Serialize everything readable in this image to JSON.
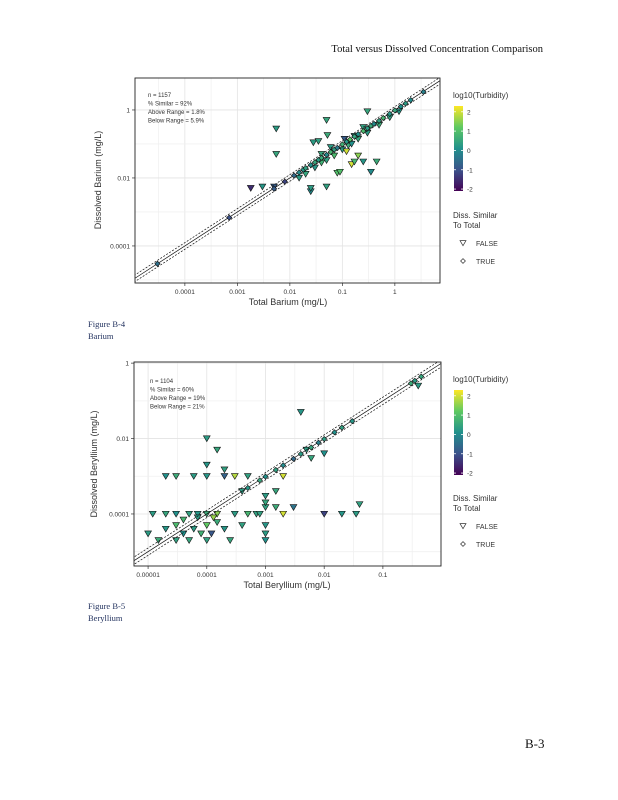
{
  "header": {
    "title": "Total versus Dissolved Concentration Comparison"
  },
  "page_number": "B-3",
  "figures": [
    {
      "caption_number": "Figure B-4",
      "caption_name": "Barium"
    },
    {
      "caption_number": "Figure B-5",
      "caption_name": "Beryllium"
    }
  ],
  "colorscale": [
    "#440154",
    "#3b528b",
    "#21918c",
    "#5ec962",
    "#fde725"
  ],
  "chart_data": [
    {
      "type": "scatter",
      "xlabel": "Total Barium (mg/L)",
      "ylabel": "Dissolved Barium (mg/L)",
      "x_scale": "log10",
      "y_scale": "log10",
      "x_ticks": [
        {
          "v": 0.0001,
          "label": "0.0001"
        },
        {
          "v": 0.001,
          "label": "0.001"
        },
        {
          "v": 0.01,
          "label": "0.01"
        },
        {
          "v": 0.1,
          "label": "0.1"
        },
        {
          "v": 1,
          "label": "1"
        }
      ],
      "y_ticks": [
        {
          "v": 1,
          "label": "1"
        },
        {
          "v": 0.01,
          "label": "0.01"
        },
        {
          "v": 0.0001,
          "label": "0.0001"
        }
      ],
      "stats": [
        "n = 1157",
        "% Similar = 92%",
        "Above Range = 1.8%",
        "Below Range = 5.9%"
      ],
      "legend": {
        "color_title": "log10(Turbidity)",
        "color_ticks": [
          "2",
          "1",
          "0",
          "-1",
          "-2"
        ],
        "shape_title_1": "Diss. Similar",
        "shape_title_2": "To Total",
        "false_label": "FALSE",
        "true_label": "TRUE"
      },
      "color_range": [
        -2.1,
        2.3
      ],
      "points_format": [
        "total",
        "dissolved",
        "log10_turbidity",
        "similar"
      ],
      "points": [
        [
          3e-05,
          3e-05,
          -0.5,
          1
        ],
        [
          0.0007,
          0.00068,
          -1,
          1
        ],
        [
          0.005,
          0.0048,
          -0.8,
          1
        ],
        [
          0.008,
          0.0078,
          -1.2,
          1
        ],
        [
          0.012,
          0.0118,
          -0.6,
          1
        ],
        [
          0.015,
          0.0145,
          0,
          1
        ],
        [
          0.018,
          0.0175,
          0.2,
          1
        ],
        [
          0.02,
          0.0195,
          0.4,
          1
        ],
        [
          0.025,
          0.024,
          0.1,
          1
        ],
        [
          0.03,
          0.029,
          0.5,
          1
        ],
        [
          0.035,
          0.034,
          0.3,
          1
        ],
        [
          0.04,
          0.039,
          0.6,
          1
        ],
        [
          0.05,
          0.048,
          0,
          1
        ],
        [
          0.06,
          0.058,
          0.8,
          1
        ],
        [
          0.07,
          0.068,
          0.4,
          1
        ],
        [
          0.08,
          0.077,
          -0.3,
          1
        ],
        [
          0.1,
          0.097,
          0.7,
          1
        ],
        [
          0.12,
          0.116,
          0.2,
          1
        ],
        [
          0.14,
          0.135,
          1.2,
          1
        ],
        [
          0.17,
          0.165,
          0.5,
          1
        ],
        [
          0.2,
          0.194,
          0.1,
          1
        ],
        [
          0.25,
          0.24,
          0.9,
          1
        ],
        [
          0.3,
          0.29,
          0.3,
          1
        ],
        [
          0.35,
          0.34,
          0.6,
          1
        ],
        [
          0.4,
          0.39,
          0.0,
          1
        ],
        [
          0.5,
          0.48,
          0.4,
          1
        ],
        [
          0.6,
          0.58,
          0.8,
          1
        ],
        [
          0.8,
          0.77,
          0.2,
          1
        ],
        [
          1.0,
          0.97,
          0.5,
          1
        ],
        [
          1.3,
          1.26,
          0.1,
          1
        ],
        [
          1.6,
          1.55,
          0.3,
          1
        ],
        [
          2.0,
          1.95,
          0.0,
          1
        ],
        [
          3.5,
          3.4,
          -0.2,
          1
        ],
        [
          0.015,
          0.01,
          0.3,
          0
        ],
        [
          0.02,
          0.013,
          0.5,
          0
        ],
        [
          0.03,
          0.02,
          0.2,
          0
        ],
        [
          0.04,
          0.028,
          0.7,
          0
        ],
        [
          0.05,
          0.033,
          0.4,
          0
        ],
        [
          0.07,
          0.045,
          0.9,
          0
        ],
        [
          0.1,
          0.068,
          0.3,
          0
        ],
        [
          0.13,
          0.09,
          0.6,
          0
        ],
        [
          0.15,
          0.1,
          0.1,
          0
        ],
        [
          0.2,
          0.14,
          0.5,
          0
        ],
        [
          0.3,
          0.21,
          0.3,
          0
        ],
        [
          0.5,
          0.36,
          0.6,
          0
        ],
        [
          0.8,
          0.6,
          0.4,
          0
        ],
        [
          1.2,
          0.9,
          0.2,
          0
        ],
        [
          0.04,
          0.05,
          0.5,
          0
        ],
        [
          0.06,
          0.08,
          0.3,
          0
        ],
        [
          0.25,
          0.31,
          0.4,
          0
        ],
        [
          0.11,
          0.14,
          -0.8,
          0
        ],
        [
          0.0055,
          0.28,
          0.3,
          0
        ],
        [
          0.0055,
          0.05,
          0.5,
          0
        ],
        [
          0.028,
          0.11,
          0.3,
          0
        ],
        [
          0.035,
          0.12,
          0.4,
          0
        ],
        [
          0.05,
          0.5,
          0.5,
          0
        ],
        [
          0.052,
          0.18,
          0.6,
          0
        ],
        [
          0.3,
          0.9,
          0.5,
          0
        ],
        [
          0.17,
          0.17,
          0.3,
          0
        ],
        [
          0.025,
          0.004,
          0.0,
          0
        ],
        [
          0.025,
          0.005,
          0.3,
          0
        ],
        [
          0.05,
          0.0055,
          0.4,
          0
        ],
        [
          0.0018,
          0.005,
          -1.5,
          0
        ],
        [
          0.003,
          0.0055,
          0.2,
          0
        ],
        [
          0.005,
          0.0055,
          -0.8,
          0
        ],
        [
          0.25,
          0.03,
          0.2,
          0
        ],
        [
          0.45,
          0.03,
          0.6,
          0
        ],
        [
          0.35,
          0.015,
          0.0,
          0
        ],
        [
          0.08,
          0.014,
          1.0,
          0
        ],
        [
          0.09,
          0.015,
          1.0,
          0
        ],
        [
          0.15,
          0.025,
          2.0,
          0
        ],
        [
          0.12,
          0.06,
          2.0,
          0
        ],
        [
          0.2,
          0.045,
          1.5,
          0
        ],
        [
          0.17,
          0.03,
          0.8,
          0
        ]
      ]
    },
    {
      "type": "scatter",
      "xlabel": "Total Beryllium (mg/L)",
      "ylabel": "Dissolved Beryllium (mg/L)",
      "x_scale": "log10",
      "y_scale": "log10",
      "x_ticks": [
        {
          "v": 1e-05,
          "label": "0.00001"
        },
        {
          "v": 0.0001,
          "label": "0.0001"
        },
        {
          "v": 0.001,
          "label": "0.001"
        },
        {
          "v": 0.01,
          "label": "0.01"
        },
        {
          "v": 0.1,
          "label": "0.1"
        }
      ],
      "y_ticks": [
        {
          "v": 1,
          "label": "1"
        },
        {
          "v": 0.01,
          "label": "0.01"
        },
        {
          "v": 0.0001,
          "label": "0.0001"
        }
      ],
      "stats": [
        "n = 1104",
        "% Similar = 60%",
        "Above Range = 19%",
        "Below Range = 21%"
      ],
      "legend": {
        "color_title": "log10(Turbidity)",
        "color_ticks": [
          "2",
          "1",
          "0",
          "-1",
          "-2"
        ],
        "shape_title_1": "Diss. Similar",
        "shape_title_2": "To Total",
        "false_label": "FALSE",
        "true_label": "TRUE"
      },
      "color_range": [
        -2.1,
        2.3
      ],
      "points_format": [
        "total",
        "dissolved",
        "log10_turbidity",
        "similar"
      ],
      "points": [
        [
          0.0005,
          0.00049,
          0.2,
          1
        ],
        [
          0.0008,
          0.00078,
          0.5,
          1
        ],
        [
          0.001,
          0.00098,
          0.1,
          1
        ],
        [
          0.0015,
          0.00147,
          0.4,
          1
        ],
        [
          0.002,
          0.00195,
          0.0,
          1
        ],
        [
          0.003,
          0.0029,
          -0.6,
          1
        ],
        [
          0.004,
          0.0039,
          0.3,
          1
        ],
        [
          0.006,
          0.0058,
          0.5,
          1
        ],
        [
          0.008,
          0.0078,
          -0.2,
          1
        ],
        [
          0.01,
          0.0097,
          0.3,
          1
        ],
        [
          0.015,
          0.0146,
          0.1,
          1
        ],
        [
          0.02,
          0.0195,
          0.4,
          1
        ],
        [
          0.03,
          0.029,
          0.2,
          1
        ],
        [
          0.3,
          0.29,
          0.6,
          1
        ],
        [
          0.35,
          0.34,
          0.3,
          1
        ],
        [
          0.45,
          0.44,
          0.5,
          1
        ],
        [
          1.2e-05,
          0.0001,
          0.3,
          0
        ],
        [
          2e-05,
          0.0001,
          0.5,
          0
        ],
        [
          3e-05,
          0.0001,
          0.1,
          0
        ],
        [
          5e-05,
          0.0001,
          0.4,
          0
        ],
        [
          7e-05,
          0.0001,
          0.2,
          0
        ],
        [
          0.0001,
          0.0001,
          0.6,
          0
        ],
        [
          0.00015,
          0.0001,
          1.5,
          0
        ],
        [
          0.0003,
          0.0001,
          0.3,
          0
        ],
        [
          0.0005,
          0.0001,
          0.8,
          0
        ],
        [
          0.0007,
          0.0001,
          0.4,
          0
        ],
        [
          1e-05,
          3e-05,
          0.3,
          0
        ],
        [
          1.5e-05,
          2e-05,
          0.6,
          0
        ],
        [
          2e-05,
          4e-05,
          0.2,
          0
        ],
        [
          3e-05,
          2e-05,
          0.4,
          0
        ],
        [
          3e-05,
          5e-05,
          0.9,
          0
        ],
        [
          4e-05,
          3e-05,
          0.1,
          0
        ],
        [
          5e-05,
          2e-05,
          0.5,
          0
        ],
        [
          6e-05,
          4e-05,
          0.3,
          0
        ],
        [
          8e-05,
          3e-05,
          0.7,
          0
        ],
        [
          0.0001,
          2e-05,
          0.4,
          0
        ],
        [
          0.0001,
          5e-05,
          1.2,
          0
        ],
        [
          0.00012,
          3e-05,
          -0.9,
          0
        ],
        [
          0.00015,
          6e-05,
          0.6,
          0
        ],
        [
          0.0002,
          4e-05,
          0.2,
          0
        ],
        [
          0.00025,
          2e-05,
          0.5,
          0
        ],
        [
          4e-05,
          7e-05,
          0.8,
          0
        ],
        [
          7e-05,
          8e-05,
          0.3,
          0
        ],
        [
          0.00013,
          8e-05,
          1.6,
          0
        ],
        [
          0.0004,
          5e-05,
          0.4,
          0
        ],
        [
          0.0001,
          0.01,
          0.3,
          0
        ],
        [
          0.00015,
          0.005,
          0.5,
          0
        ],
        [
          0.0001,
          0.002,
          0.2,
          0
        ],
        [
          0.0002,
          0.0015,
          0.4,
          0
        ],
        [
          2e-05,
          0.001,
          0.1,
          0
        ],
        [
          3e-05,
          0.001,
          0.6,
          0
        ],
        [
          6e-05,
          0.001,
          0.3,
          0
        ],
        [
          0.0001,
          0.001,
          0.2,
          0
        ],
        [
          0.0002,
          0.001,
          -0.7,
          0
        ],
        [
          0.0003,
          0.001,
          1.8,
          0
        ],
        [
          0.0005,
          0.001,
          0.4,
          0
        ],
        [
          0.002,
          0.001,
          2.0,
          0
        ],
        [
          0.004,
          0.05,
          0.2,
          0
        ],
        [
          0.02,
          0.0001,
          0.2,
          0
        ],
        [
          0.01,
          0.0001,
          -1.2,
          0
        ],
        [
          0.003,
          0.00015,
          -0.4,
          0
        ],
        [
          0.04,
          0.00018,
          0.4,
          0
        ],
        [
          0.035,
          0.0001,
          0.3,
          0
        ],
        [
          0.002,
          0.0001,
          2.0,
          0
        ],
        [
          0.0015,
          0.0004,
          0.5,
          0
        ],
        [
          0.0015,
          0.00015,
          0.6,
          0
        ],
        [
          0.001,
          5e-05,
          0.2,
          0
        ],
        [
          0.001,
          3e-05,
          0.3,
          0
        ],
        [
          0.001,
          2e-05,
          0.1,
          0
        ],
        [
          0.001,
          0.00015,
          0.4,
          0
        ],
        [
          0.001,
          0.0002,
          0.5,
          0
        ],
        [
          0.001,
          0.0003,
          0.3,
          0
        ],
        [
          0.0008,
          0.0001,
          0.4,
          0
        ],
        [
          0.005,
          0.005,
          0.3,
          0
        ],
        [
          0.01,
          0.004,
          0.1,
          0
        ],
        [
          0.4,
          0.25,
          0.3,
          0
        ],
        [
          0.006,
          0.003,
          0.5,
          0
        ],
        [
          0.0004,
          0.0004,
          0.3,
          0
        ]
      ]
    }
  ]
}
